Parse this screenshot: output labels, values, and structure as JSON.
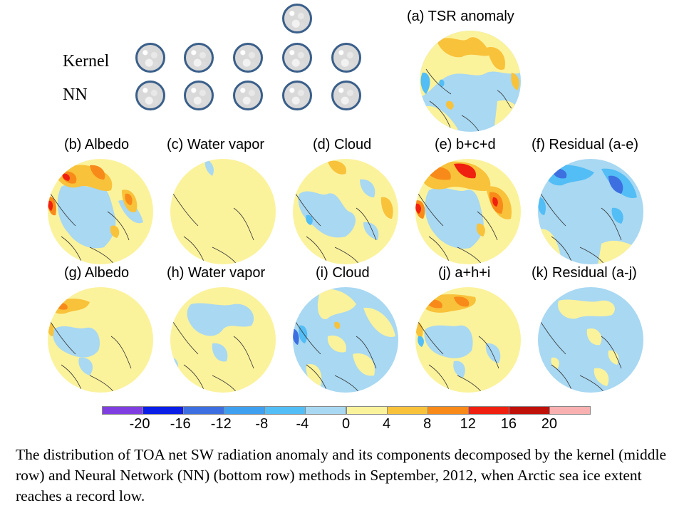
{
  "row_labels": {
    "kernel": "Kernel",
    "nn": "NN"
  },
  "panels": {
    "a": "(a) TSR anomaly",
    "b": "(b) Albedo",
    "c": "(c) Water vapor",
    "d": "(d) Cloud",
    "e": "(e) b+c+d",
    "f": "(f) Residual (a-e)",
    "g": "(g) Albedo",
    "h": "(h) Water vapor",
    "i": "(i) Cloud",
    "j": "(j) a+h+i",
    "k": "(k) Residual (a-j)"
  },
  "colorbar": {
    "ticks": [
      "-20",
      "-16",
      "-12",
      "-8",
      "-4",
      "0",
      "4",
      "8",
      "12",
      "16",
      "20"
    ],
    "colors": [
      "#7f3fe0",
      "#0a1ee6",
      "#3d6fe0",
      "#3fa0f0",
      "#53bdf5",
      "#a8d8f2",
      "#fbf29c",
      "#f8c23a",
      "#f88a1a",
      "#f02010",
      "#c0100a",
      "#f8b0b0"
    ]
  },
  "map_colors": {
    "neg_strong": "#3d6fe0",
    "neg_mid": "#53bdf5",
    "neg_light": "#a8d8f2",
    "pos_light": "#fbf29c",
    "pos_mid": "#f8c23a",
    "pos_strong": "#f88a1a",
    "pos_max": "#f02010",
    "coast": "#333333"
  },
  "caption": "The distribution of TOA net SW radiation anomaly and its components decomposed by the kernel (middle row) and Neural Network (NN) (bottom row) methods in September, 2012, when Arctic sea ice extent reaches a record low."
}
